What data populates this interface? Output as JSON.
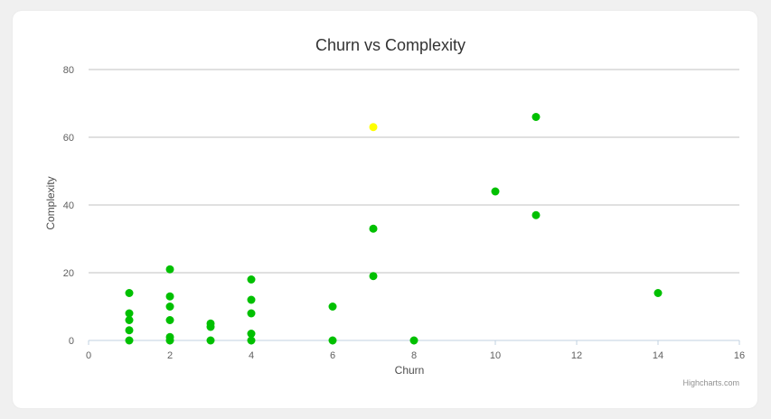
{
  "chart_data": {
    "type": "scatter",
    "title": "Churn vs Complexity",
    "xlabel": "Churn",
    "ylabel": "Complexity",
    "xlim": [
      0,
      16
    ],
    "ylim": [
      0,
      80
    ],
    "xticks": [
      0,
      2,
      4,
      6,
      8,
      10,
      12,
      14,
      16
    ],
    "yticks": [
      0,
      20,
      40,
      60,
      80
    ],
    "grid": "horizontal",
    "legend": "none",
    "colors": {
      "default": "#00c000",
      "highlight": "#ffff00"
    },
    "series": [
      {
        "points": [
          {
            "x": 1,
            "y": 14
          },
          {
            "x": 1,
            "y": 8
          },
          {
            "x": 1,
            "y": 6
          },
          {
            "x": 1,
            "y": 3
          },
          {
            "x": 1,
            "y": 0
          },
          {
            "x": 2,
            "y": 21
          },
          {
            "x": 2,
            "y": 13
          },
          {
            "x": 2,
            "y": 10
          },
          {
            "x": 2,
            "y": 6
          },
          {
            "x": 2,
            "y": 1
          },
          {
            "x": 2,
            "y": 0
          },
          {
            "x": 3,
            "y": 5
          },
          {
            "x": 3,
            "y": 4
          },
          {
            "x": 3,
            "y": 0
          },
          {
            "x": 4,
            "y": 18
          },
          {
            "x": 4,
            "y": 12
          },
          {
            "x": 4,
            "y": 8
          },
          {
            "x": 4,
            "y": 2
          },
          {
            "x": 4,
            "y": 0
          },
          {
            "x": 6,
            "y": 10
          },
          {
            "x": 6,
            "y": 0
          },
          {
            "x": 7,
            "y": 63,
            "color": "#ffff00"
          },
          {
            "x": 7,
            "y": 33
          },
          {
            "x": 7,
            "y": 19
          },
          {
            "x": 8,
            "y": 0
          },
          {
            "x": 10,
            "y": 44
          },
          {
            "x": 11,
            "y": 66
          },
          {
            "x": 11,
            "y": 37
          },
          {
            "x": 14,
            "y": 14
          }
        ]
      }
    ]
  },
  "credits": "Highcharts.com"
}
